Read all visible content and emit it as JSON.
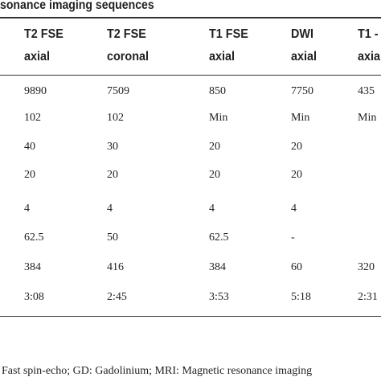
{
  "title": "sonance imaging sequences",
  "table": {
    "header": [
      [
        "T2 FSE",
        "axial"
      ],
      [
        "T2 FSE",
        "coronal"
      ],
      [
        "T1 FSE",
        "axial"
      ],
      [
        "DWI",
        "axial"
      ],
      [
        "T1 -",
        "axia"
      ]
    ],
    "rows": [
      [
        "9890",
        "7509",
        "850",
        "7750",
        "435"
      ],
      [
        "102",
        "102",
        "Min",
        "Min",
        "Min"
      ],
      [
        "40",
        "30",
        "20",
        "20",
        null
      ],
      [
        "20",
        "20",
        "20",
        "20",
        null
      ],
      [
        "4",
        "4",
        "4",
        "4",
        null
      ],
      [
        "62.5",
        "50",
        "62.5",
        "-",
        null
      ],
      [
        "384",
        "416",
        "384",
        "60",
        "320"
      ],
      [
        "3:08",
        "2:45",
        "3:53",
        "5:18",
        "2:31"
      ]
    ]
  },
  "footnote": "Fast spin-echo; GD: Gadolinium; MRI: Magnetic resonance imaging"
}
